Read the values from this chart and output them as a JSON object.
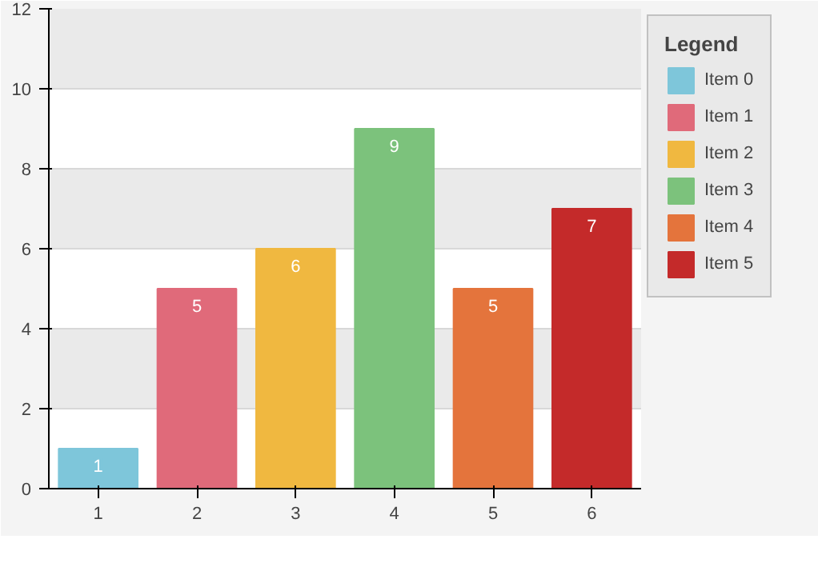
{
  "chart_data": {
    "type": "bar",
    "categories": [
      "1",
      "2",
      "3",
      "4",
      "5",
      "6"
    ],
    "series": [
      {
        "name": "Item 0",
        "color": "#7ec6da",
        "values": [
          1,
          null,
          null,
          null,
          null,
          null
        ]
      },
      {
        "name": "Item 1",
        "color": "#e06a7a",
        "values": [
          null,
          5,
          null,
          null,
          null,
          null
        ]
      },
      {
        "name": "Item 2",
        "color": "#f0b840",
        "values": [
          null,
          null,
          6,
          null,
          null,
          null
        ]
      },
      {
        "name": "Item 3",
        "color": "#7cc27c",
        "values": [
          null,
          null,
          null,
          9,
          null,
          null
        ]
      },
      {
        "name": "Item 4",
        "color": "#e4743c",
        "values": [
          null,
          null,
          null,
          null,
          5,
          null
        ]
      },
      {
        "name": "Item 5",
        "color": "#c42a2a",
        "values": [
          null,
          null,
          null,
          null,
          null,
          7
        ]
      }
    ],
    "ylim": [
      0,
      12
    ],
    "yticks": [
      0,
      2,
      4,
      6,
      8,
      10,
      12
    ],
    "grid": "y",
    "legend": "right",
    "legend_title": "Legend",
    "data_labels": true
  }
}
